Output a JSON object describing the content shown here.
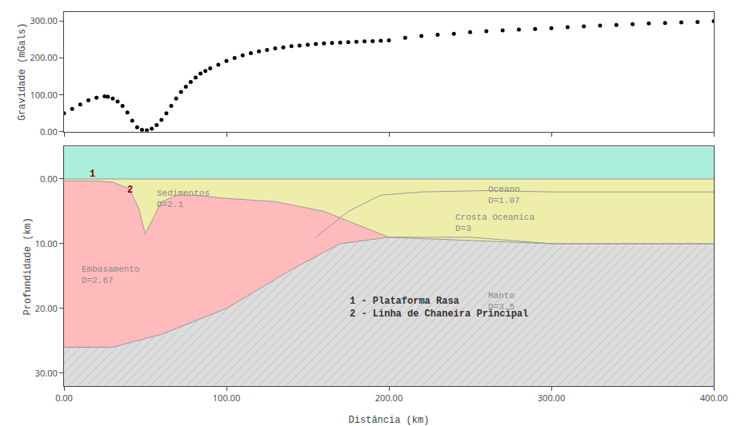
{
  "chart_data": [
    {
      "type": "scatter",
      "ylabel": "Gravidade (mGals)",
      "x": [
        0,
        5,
        10,
        15,
        20,
        25,
        27,
        30,
        33,
        36,
        39,
        42,
        45,
        48,
        51,
        54,
        57,
        60,
        63,
        66,
        69,
        72,
        75,
        78,
        81,
        84,
        87,
        90,
        95,
        100,
        105,
        110,
        115,
        120,
        125,
        130,
        135,
        140,
        145,
        150,
        155,
        160,
        165,
        170,
        175,
        180,
        185,
        190,
        195,
        200,
        210,
        220,
        230,
        240,
        250,
        260,
        270,
        280,
        290,
        300,
        310,
        320,
        330,
        340,
        350,
        360,
        370,
        380,
        390,
        400
      ],
      "values": [
        50,
        62,
        74,
        85,
        92,
        96,
        95,
        90,
        82,
        70,
        52,
        30,
        12,
        5,
        4,
        8,
        18,
        32,
        50,
        70,
        90,
        108,
        122,
        135,
        147,
        158,
        165,
        172,
        182,
        192,
        200,
        207,
        213,
        218,
        222,
        226,
        229,
        232,
        234,
        236,
        238,
        240,
        241,
        242,
        243,
        244,
        245,
        246,
        247,
        248,
        255,
        260,
        263,
        266,
        270,
        273,
        275,
        277,
        279,
        281,
        284,
        286,
        288,
        290,
        292,
        294,
        295,
        297,
        298,
        300
      ],
      "color": "#000000",
      "marker": "circle",
      "xlim": [
        0,
        400
      ],
      "xticks": [
        0,
        100,
        200,
        300,
        400
      ],
      "ylim": [
        0,
        325
      ],
      "yticks": [
        {
          "value": 0,
          "label": "0.00"
        },
        {
          "value": 100,
          "label": "100.00"
        },
        {
          "value": 200,
          "label": "200.00"
        },
        {
          "value": 300,
          "label": "300.00"
        }
      ],
      "tick_labels": "y",
      "grid": false
    },
    {
      "type": "area",
      "xlabel": "Distância (km)",
      "ylabel": "Profundidade (km)",
      "xlim": [
        0,
        400
      ],
      "xticks": [
        {
          "value": 0,
          "label": "0.00"
        },
        {
          "value": 100,
          "label": "100.00"
        },
        {
          "value": 200,
          "label": "200.00"
        },
        {
          "value": 300,
          "label": "300.00"
        },
        {
          "value": 400,
          "label": "400.00"
        }
      ],
      "ylim": [
        32,
        -5
      ],
      "yticks": [
        {
          "value": 0,
          "label": "0.00"
        },
        {
          "value": 10,
          "label": "10.00"
        },
        {
          "value": 20,
          "label": "20.00"
        },
        {
          "value": 30,
          "label": "30.00"
        }
      ],
      "grid": false,
      "series": [
        {
          "type": "polygon",
          "color": "#dddddd",
          "x": [
            0,
            400,
            400,
            0
          ],
          "values": [
            32,
            32,
            -5,
            -5
          ]
        },
        {
          "type": "polygon",
          "color": "#bbbbdd",
          "x": [
            155,
            175,
            195,
            220,
            260,
            300,
            400,
            400,
            300,
            250,
            200,
            170
          ],
          "values": [
            9,
            5,
            2.5,
            2,
            1.8,
            2,
            2,
            10,
            10,
            9,
            9,
            10
          ]
        },
        {
          "type": "polygon",
          "color": "#ffbbbb",
          "x": [
            0,
            10,
            20,
            30,
            40,
            46,
            50,
            55,
            60,
            70,
            80,
            100,
            130,
            160,
            185,
            200,
            250,
            300,
            400,
            400,
            300,
            250,
            200,
            170,
            140,
            100,
            60,
            30,
            0
          ],
          "values": [
            0.3,
            0.3,
            0.3,
            0.5,
            1.5,
            4.5,
            8.5,
            6.0,
            3.5,
            2.5,
            2.5,
            3.0,
            3.5,
            5.0,
            7.5,
            9.0,
            9.5,
            10.0,
            10.0,
            10,
            10,
            9,
            9,
            10,
            14,
            20,
            24,
            26,
            26
          ]
        },
        {
          "type": "polygon",
          "color": "#eeeeaa",
          "x": [
            0,
            10,
            20,
            30,
            40,
            46,
            50,
            55,
            60,
            70,
            80,
            100,
            130,
            160,
            185,
            200,
            250,
            300,
            400,
            400,
            300,
            250,
            200,
            185,
            160,
            130,
            100,
            80,
            70,
            60,
            55,
            50,
            46,
            40,
            30,
            20,
            10,
            0
          ],
          "values": [
            0,
            0,
            0,
            0,
            0,
            0,
            0,
            0,
            0,
            0,
            0,
            0,
            0,
            0,
            0,
            0,
            0,
            0,
            0,
            10.0,
            10.0,
            9.5,
            9.0,
            7.5,
            5.0,
            3.5,
            3.0,
            2.5,
            2.5,
            3.5,
            6.0,
            8.5,
            4.5,
            1.5,
            0.5,
            0.3,
            0.3,
            0.3
          ]
        },
        {
          "type": "polygon",
          "color": "#aaeedd",
          "x": [
            0,
            400,
            400,
            0
          ],
          "values": [
            0,
            0,
            -5,
            -5
          ]
        },
        {
          "type": "line",
          "color": "#999999",
          "x": [
            0,
            30,
            60,
            100,
            140,
            170,
            200,
            250,
            300,
            400
          ],
          "values": [
            26,
            26,
            24,
            20,
            14,
            10,
            9,
            9,
            10,
            10
          ]
        },
        {
          "type": "line",
          "color": "#999999",
          "x": [
            0,
            10,
            20,
            30,
            40,
            46,
            50,
            55,
            60,
            70,
            80,
            100,
            130,
            160,
            185,
            200,
            250,
            300,
            400
          ],
          "values": [
            0.3,
            0.3,
            0.3,
            0.5,
            1.5,
            4.5,
            8.5,
            6.0,
            3.5,
            2.5,
            2.5,
            3.0,
            3.5,
            5.0,
            7.5,
            9.0,
            9.5,
            10.0,
            10.0
          ]
        },
        {
          "type": "line",
          "color": "#999999",
          "x": [
            155,
            175,
            195,
            220,
            260,
            300,
            400
          ],
          "values": [
            9,
            5,
            2.5,
            2,
            1.8,
            2,
            2
          ]
        },
        {
          "type": "line",
          "color": "#999999",
          "x": [
            0,
            400
          ],
          "values": [
            0,
            0
          ]
        }
      ],
      "annotations": [
        {
          "text": "Oceano\nD=1.07",
          "x": 260,
          "y": 0.6,
          "color": "#888888"
        },
        {
          "text": "Crosta Oceanica\nD=3",
          "x": 240,
          "y": 5.0,
          "color": "#888888"
        },
        {
          "text": "Manto\nD=3.5",
          "x": 260,
          "y": 17.0,
          "color": "#888888"
        },
        {
          "text": "Embasamento\nD=2.67",
          "x": 10,
          "y": 13.0,
          "color": "#888888"
        },
        {
          "text": "Sedimentos\nD=2.1",
          "x": 56,
          "y": 1.2,
          "color": "#888888"
        }
      ],
      "notes": [
        {
          "text": "1",
          "x": 15,
          "y": 0.4,
          "color": "#880000"
        },
        {
          "text": "2",
          "x": 38,
          "y": 2.8,
          "color": "#880000"
        },
        {
          "text": "1 - Plataforma Rasa\n2 - Linha de Chaneira Principal",
          "x": 175,
          "y": 22.0,
          "color": "#333333"
        }
      ]
    }
  ]
}
